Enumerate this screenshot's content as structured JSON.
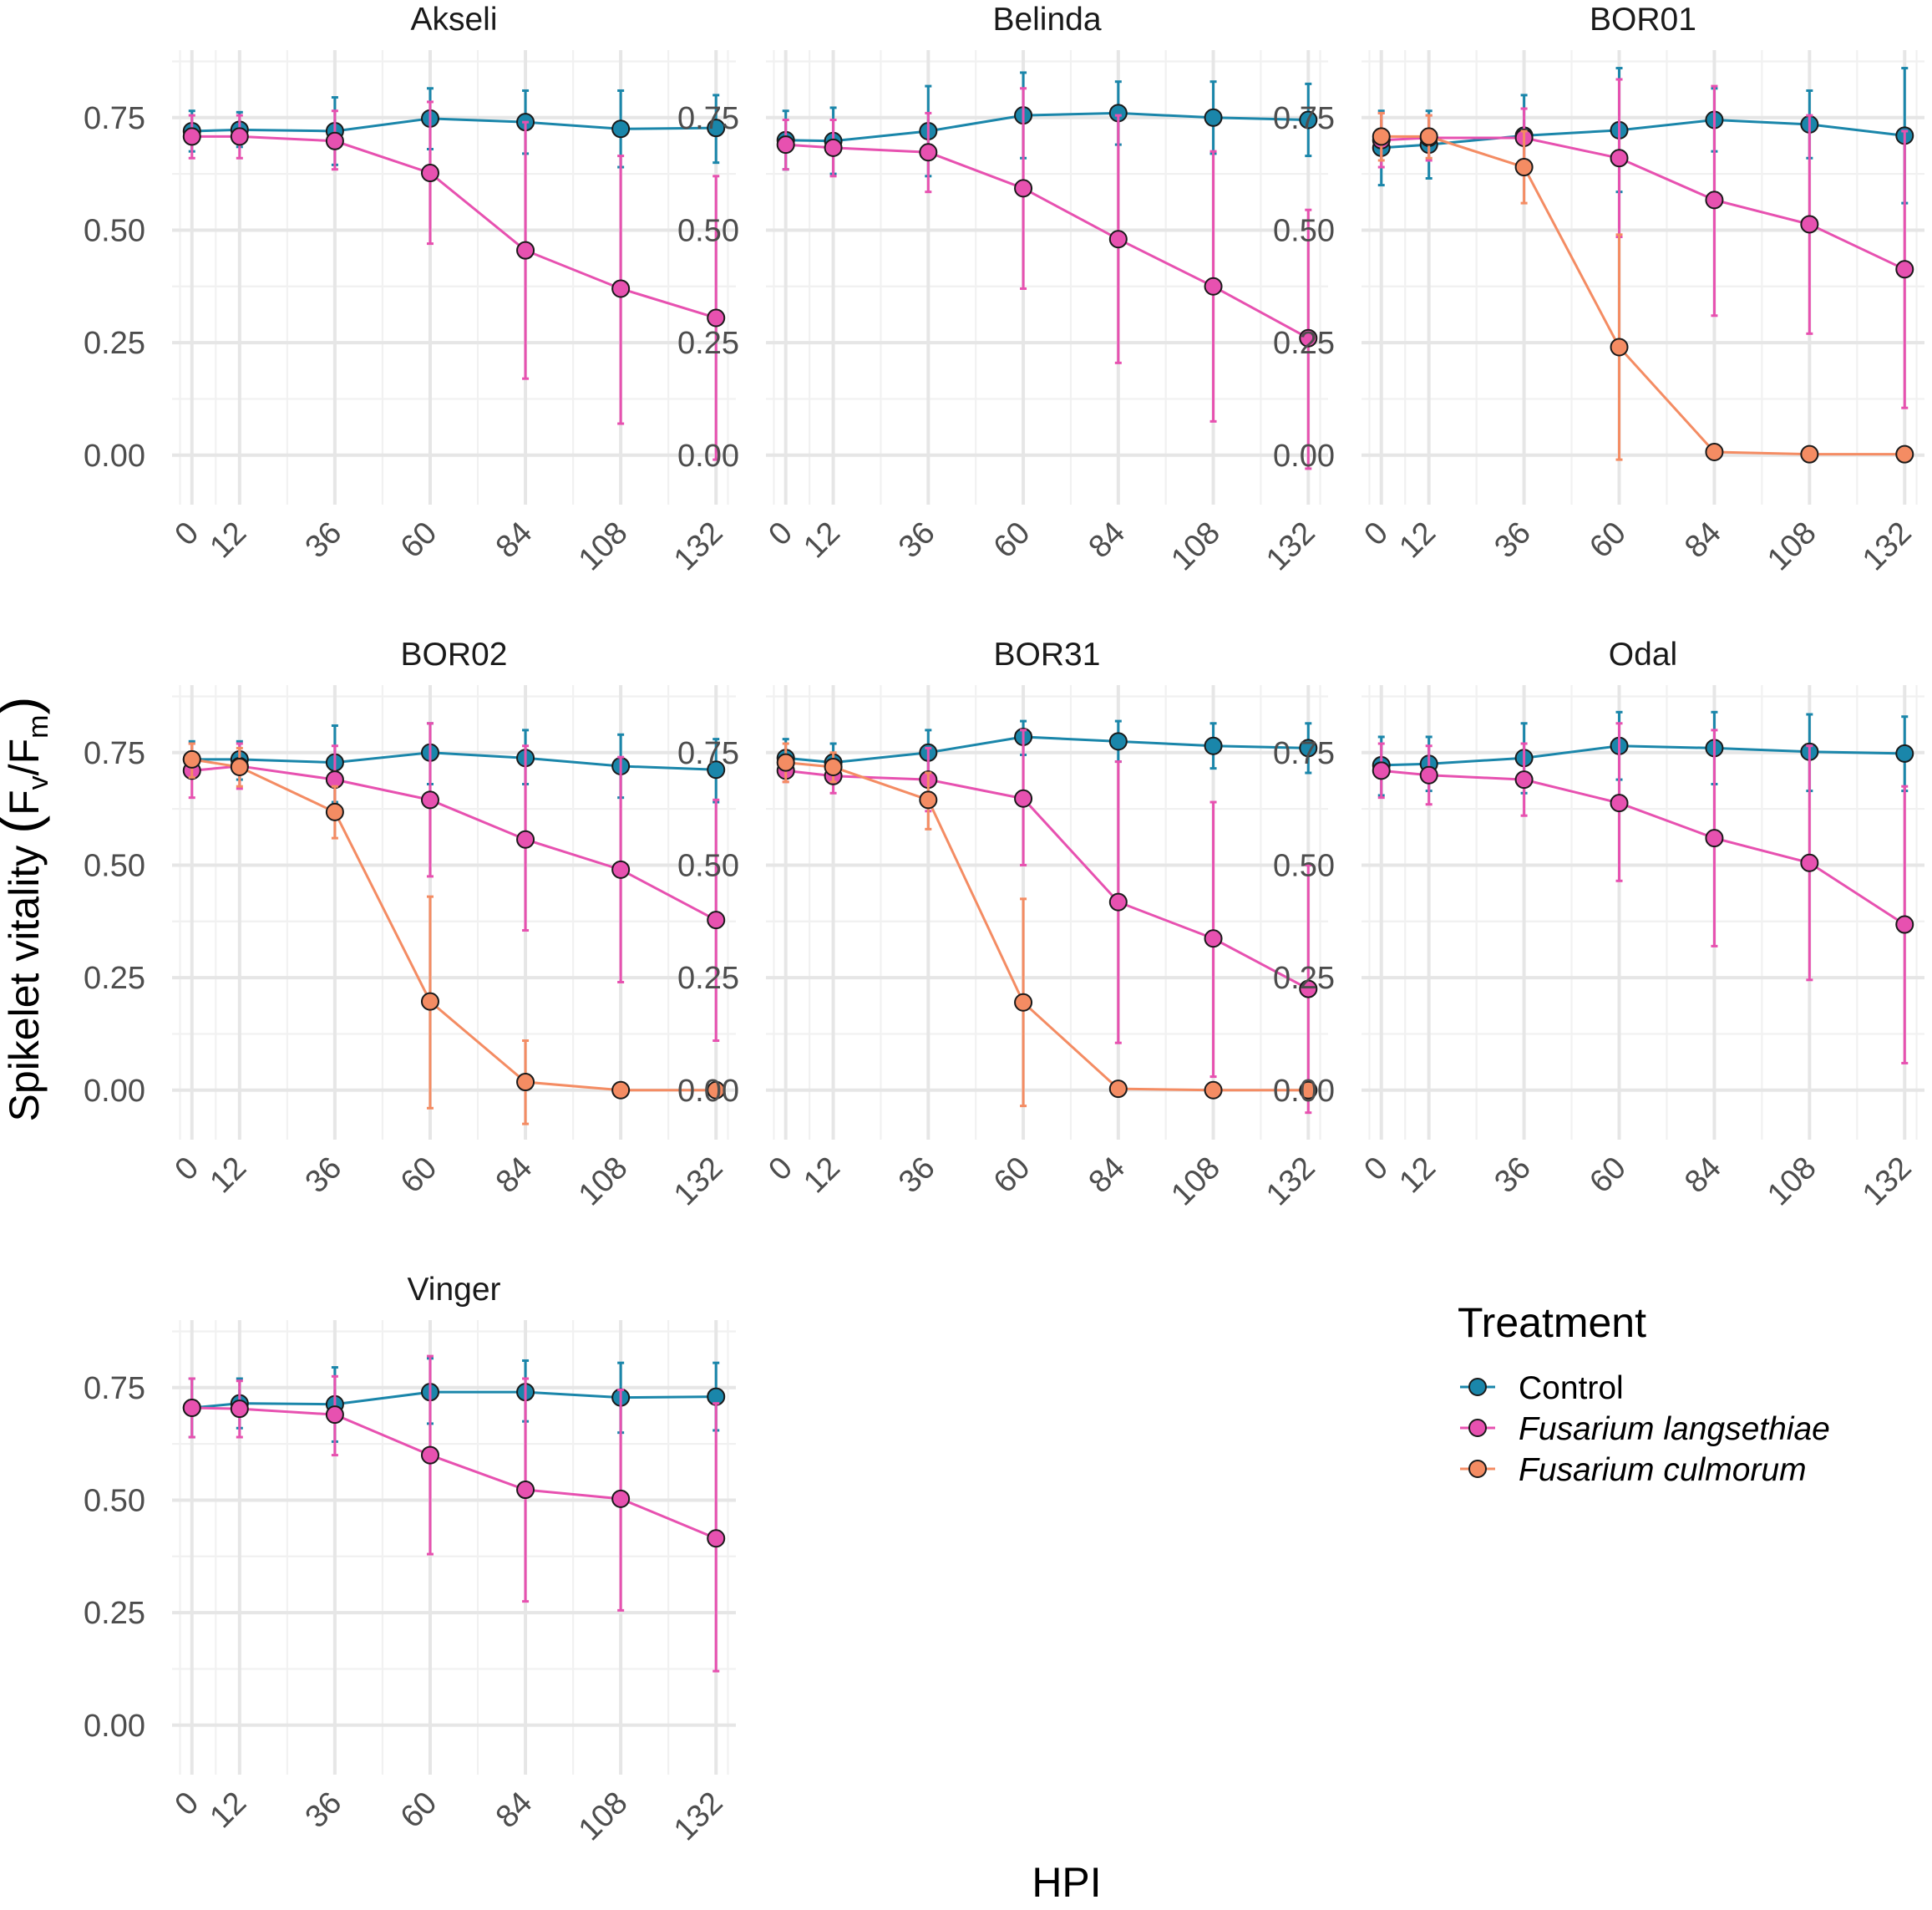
{
  "chart_data": {
    "type": "line",
    "x": [
      0,
      12,
      36,
      60,
      84,
      108,
      132
    ],
    "xlabel": "HPI",
    "ylabel": "Spikelet vitality",
    "ylabel_formula": {
      "open": "(",
      "F1": "F",
      "sub1": "v",
      "slash": "/",
      "F2": "F",
      "sub2": "m",
      "close": ")"
    },
    "ylim": [
      -0.11,
      0.9
    ],
    "yticks": [
      "0.00",
      "0.25",
      "0.50",
      "0.75"
    ],
    "xticks": [
      "0",
      "12",
      "36",
      "60",
      "84",
      "108",
      "132"
    ],
    "legend": {
      "title": "Treatment",
      "position": "right",
      "entries": [
        {
          "name": "Control",
          "italic": false
        },
        {
          "name": "Fusarium langsethiae",
          "italic": true
        },
        {
          "name": "Fusarium culmorum",
          "italic": true
        }
      ]
    },
    "colors": {
      "Control": "#1a86aa",
      "Fusarium langsethiae": "#e751b0",
      "Fusarium culmorum": "#f48c63",
      "point_outline": "#1a1a1a"
    },
    "panels": [
      {
        "title": "Akseli",
        "series": [
          {
            "name": "Control",
            "values": [
              0.72,
              0.723,
              0.72,
              0.748,
              0.74,
              0.725,
              0.727
            ],
            "lower": [
              0.675,
              0.685,
              0.645,
              0.68,
              0.67,
              0.64,
              0.65
            ],
            "upper": [
              0.765,
              0.762,
              0.795,
              0.815,
              0.81,
              0.81,
              0.8
            ]
          },
          {
            "name": "Fusarium langsethiae",
            "values": [
              0.708,
              0.708,
              0.698,
              0.627,
              0.455,
              0.37,
              0.305
            ],
            "lower": [
              0.66,
              0.66,
              0.635,
              0.47,
              0.17,
              0.07,
              -0.01
            ],
            "upper": [
              0.755,
              0.755,
              0.765,
              0.785,
              0.74,
              0.665,
              0.62
            ]
          }
        ]
      },
      {
        "title": "Belinda",
        "series": [
          {
            "name": "Control",
            "values": [
              0.7,
              0.698,
              0.72,
              0.755,
              0.76,
              0.75,
              0.745
            ],
            "lower": [
              0.635,
              0.625,
              0.62,
              0.66,
              0.69,
              0.67,
              0.665
            ],
            "upper": [
              0.765,
              0.772,
              0.82,
              0.85,
              0.83,
              0.83,
              0.825
            ]
          },
          {
            "name": "Fusarium langsethiae",
            "values": [
              0.69,
              0.683,
              0.673,
              0.593,
              0.48,
              0.375,
              0.26
            ],
            "lower": [
              0.635,
              0.62,
              0.585,
              0.37,
              0.205,
              0.075,
              -0.03
            ],
            "upper": [
              0.745,
              0.745,
              0.76,
              0.815,
              0.755,
              0.675,
              0.545
            ]
          }
        ]
      },
      {
        "title": "BOR01",
        "series": [
          {
            "name": "Control",
            "values": [
              0.683,
              0.69,
              0.71,
              0.722,
              0.745,
              0.735,
              0.71
            ],
            "lower": [
              0.6,
              0.615,
              0.625,
              0.585,
              0.675,
              0.66,
              0.56
            ],
            "upper": [
              0.765,
              0.765,
              0.8,
              0.86,
              0.815,
              0.81,
              0.86
            ]
          },
          {
            "name": "Fusarium langsethiae",
            "values": [
              0.7,
              0.705,
              0.705,
              0.66,
              0.567,
              0.513,
              0.413
            ],
            "lower": [
              0.64,
              0.655,
              0.64,
              0.485,
              0.31,
              0.27,
              0.105
            ],
            "upper": [
              0.76,
              0.755,
              0.77,
              0.835,
              0.82,
              0.755,
              0.72
            ]
          },
          {
            "name": "Fusarium culmorum",
            "values": [
              0.708,
              0.708,
              0.64,
              0.24,
              0.007,
              0.002,
              0.002
            ],
            "lower": [
              0.655,
              0.66,
              0.56,
              -0.01,
              0.0,
              0.0,
              0.0
            ],
            "upper": [
              0.76,
              0.755,
              0.72,
              0.49,
              0.01,
              0.005,
              0.005
            ]
          }
        ]
      },
      {
        "title": "BOR02",
        "series": [
          {
            "name": "Control",
            "values": [
              0.735,
              0.735,
              0.728,
              0.75,
              0.738,
              0.72,
              0.712
            ],
            "lower": [
              0.7,
              0.69,
              0.64,
              0.68,
              0.68,
              0.65,
              0.64
            ],
            "upper": [
              0.775,
              0.775,
              0.81,
              0.815,
              0.8,
              0.79,
              0.78
            ]
          },
          {
            "name": "Fusarium langsethiae",
            "values": [
              0.71,
              0.72,
              0.69,
              0.645,
              0.557,
              0.49,
              0.378
            ],
            "lower": [
              0.65,
              0.67,
              0.61,
              0.475,
              0.355,
              0.24,
              0.11
            ],
            "upper": [
              0.77,
              0.77,
              0.765,
              0.815,
              0.765,
              0.74,
              0.645
            ]
          },
          {
            "name": "Fusarium culmorum",
            "values": [
              0.735,
              0.718,
              0.618,
              0.197,
              0.018,
              0.0,
              0.0
            ],
            "lower": [
              0.695,
              0.675,
              0.56,
              -0.04,
              -0.075,
              0.0,
              0.0
            ],
            "upper": [
              0.77,
              0.76,
              0.675,
              0.43,
              0.11,
              0.002,
              0.002
            ]
          }
        ]
      },
      {
        "title": "BOR31",
        "series": [
          {
            "name": "Control",
            "values": [
              0.738,
              0.728,
              0.75,
              0.785,
              0.775,
              0.765,
              0.76
            ],
            "lower": [
              0.695,
              0.685,
              0.7,
              0.745,
              0.73,
              0.715,
              0.705
            ],
            "upper": [
              0.78,
              0.77,
              0.8,
              0.82,
              0.82,
              0.815,
              0.815
            ]
          },
          {
            "name": "Fusarium langsethiae",
            "values": [
              0.71,
              0.698,
              0.69,
              0.648,
              0.418,
              0.337,
              0.225
            ],
            "lower": [
              0.685,
              0.66,
              0.62,
              0.5,
              0.105,
              0.03,
              -0.05
            ],
            "upper": [
              0.735,
              0.735,
              0.76,
              0.8,
              0.73,
              0.64,
              0.5
            ]
          },
          {
            "name": "Fusarium culmorum",
            "values": [
              0.728,
              0.718,
              0.645,
              0.195,
              0.003,
              0.0,
              0.0
            ],
            "lower": [
              0.685,
              0.685,
              0.58,
              -0.035,
              0.0,
              0.0,
              0.0
            ],
            "upper": [
              0.77,
              0.75,
              0.705,
              0.425,
              0.006,
              0.002,
              0.002
            ]
          }
        ]
      },
      {
        "title": "Odal",
        "series": [
          {
            "name": "Control",
            "values": [
              0.722,
              0.725,
              0.738,
              0.765,
              0.76,
              0.752,
              0.748
            ],
            "lower": [
              0.655,
              0.665,
              0.66,
              0.69,
              0.68,
              0.665,
              0.665
            ],
            "upper": [
              0.785,
              0.785,
              0.815,
              0.84,
              0.84,
              0.835,
              0.83
            ]
          },
          {
            "name": "Fusarium langsethiae",
            "values": [
              0.71,
              0.7,
              0.69,
              0.638,
              0.56,
              0.505,
              0.368
            ],
            "lower": [
              0.65,
              0.635,
              0.61,
              0.465,
              0.32,
              0.245,
              0.06
            ],
            "upper": [
              0.77,
              0.765,
              0.77,
              0.815,
              0.8,
              0.765,
              0.675
            ]
          }
        ]
      },
      {
        "title": "Vinger",
        "series": [
          {
            "name": "Control",
            "values": [
              0.705,
              0.715,
              0.713,
              0.74,
              0.74,
              0.728,
              0.73
            ],
            "lower": [
              0.64,
              0.66,
              0.63,
              0.67,
              0.675,
              0.65,
              0.655
            ],
            "upper": [
              0.77,
              0.77,
              0.795,
              0.815,
              0.81,
              0.805,
              0.805
            ]
          },
          {
            "name": "Fusarium langsethiae",
            "values": [
              0.705,
              0.703,
              0.69,
              0.6,
              0.523,
              0.503,
              0.415
            ],
            "lower": [
              0.64,
              0.64,
              0.6,
              0.38,
              0.275,
              0.255,
              0.12
            ],
            "upper": [
              0.77,
              0.765,
              0.775,
              0.82,
              0.77,
              0.745,
              0.715
            ]
          }
        ]
      }
    ]
  }
}
